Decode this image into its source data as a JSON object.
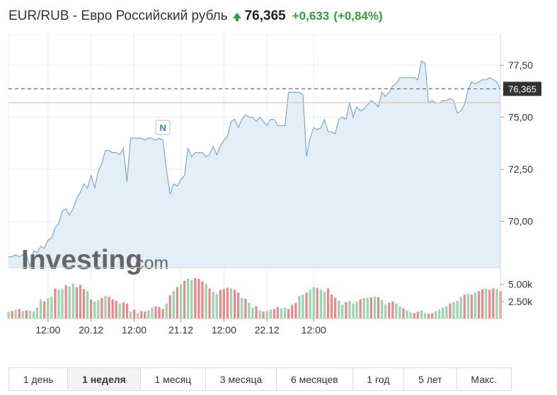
{
  "header": {
    "title": "EUR/RUB - Евро Российский рубль",
    "direction_icon": "up-arrow-icon",
    "price": "76,365",
    "change": "+0,633",
    "change_pct": "(+0,84%)",
    "up_color": "#2aa13a"
  },
  "watermark": {
    "brand": "Investing",
    "suffix": ".com"
  },
  "periods": [
    {
      "label": "1 день",
      "active": false
    },
    {
      "label": "1 неделя",
      "active": true
    },
    {
      "label": "1 месяц",
      "active": false
    },
    {
      "label": "3 месяца",
      "active": false
    },
    {
      "label": "6 месяцев",
      "active": false
    },
    {
      "label": "1 год",
      "active": false
    },
    {
      "label": "5 лет",
      "active": false
    },
    {
      "label": "Макс.",
      "active": false
    }
  ],
  "chart_data": {
    "type": "area",
    "series": [
      {
        "values": [
          68.3,
          68.3,
          68.4,
          68.3,
          68.4,
          68.4,
          67.8,
          68.6,
          68.5,
          68.8,
          68.7,
          69.1,
          69.2,
          69.7,
          69.9,
          70.5,
          70.6,
          70.3,
          70.6,
          71.1,
          71.4,
          71.8,
          71.6,
          72.2,
          71.6,
          72.4,
          72.8,
          73.4,
          73.4,
          73.3,
          73.3,
          73.2,
          73.5,
          71.9,
          74.0,
          74.0,
          74.0,
          74.0,
          73.9,
          74.0,
          74.0,
          73.9,
          74.0,
          73.9,
          72.5,
          71.3,
          71.8,
          71.7,
          72.0,
          72.2,
          73.5,
          73.1,
          73.3,
          73.3,
          73.3,
          73.1,
          73.2,
          73.6,
          73.2,
          73.6,
          73.9,
          74.1,
          74.8,
          74.9,
          74.5,
          74.9,
          75.1,
          75.0,
          75.0,
          74.8,
          75.0,
          74.8,
          74.6,
          74.9,
          74.9,
          74.6,
          74.6,
          74.6,
          76.2,
          76.2,
          76.2,
          76.2,
          76.1,
          73.1,
          74.0,
          74.5,
          74.4,
          74.5,
          74.9,
          74.3,
          74.3,
          74.2,
          74.9,
          75.0,
          74.9,
          75.7,
          75.0,
          75.5,
          75.3,
          75.4,
          75.6,
          75.8,
          75.7,
          75.5,
          76.2,
          76.0,
          76.2,
          76.5,
          76.6,
          76.9,
          76.9,
          76.9,
          76.9,
          76.9,
          76.8,
          77.7,
          77.6,
          75.7,
          75.8,
          75.7,
          75.7,
          75.8,
          75.8,
          75.9,
          75.8,
          75.2,
          75.3,
          75.6,
          76.3,
          76.7,
          76.6,
          76.7,
          76.8,
          76.8,
          76.9,
          76.8,
          76.7,
          76.365
        ]
      }
    ],
    "reference_lines": [
      {
        "value": 76.365,
        "label": "76,365",
        "style": "dashed"
      },
      {
        "value": 75.7,
        "style": "solid"
      }
    ],
    "event_marker": {
      "label": "N",
      "index": 43
    },
    "volume": {
      "values": [
        1.0,
        1.1,
        1.3,
        1.4,
        1.1,
        1.2,
        1.2,
        1.0,
        1.6,
        2.8,
        2.5,
        3.0,
        3.2,
        4.4,
        4.2,
        4.3,
        4.9,
        4.7,
        5.1,
        4.6,
        4.9,
        4.3,
        4.0,
        2.8,
        2.5,
        2.7,
        3.0,
        3.3,
        3.2,
        2.8,
        2.6,
        2.2,
        2.4,
        2.2,
        1.0,
        1.3,
        0.8,
        1.1,
        1.0,
        1.2,
        1.6,
        1.8,
        1.7,
        1.4,
        2.2,
        3.4,
        4.0,
        4.6,
        5.0,
        5.5,
        5.8,
        5.6,
        5.9,
        5.8,
        5.4,
        5.1,
        4.4,
        3.9,
        3.6,
        4.2,
        4.3,
        4.5,
        4.4,
        4.2,
        3.8,
        3.0,
        2.9,
        2.3,
        1.6,
        1.8,
        1.2,
        1.0,
        1.1,
        1.3,
        1.4,
        1.7,
        1.5,
        1.6,
        1.4,
        2.0,
        2.3,
        3.3,
        3.5,
        3.8,
        4.2,
        4.6,
        4.5,
        4.2,
        3.9,
        4.4,
        3.5,
        3.0,
        2.6,
        2.0,
        2.4,
        2.6,
        2.2,
        2.5,
        2.8,
        3.0,
        3.0,
        3.1,
        3.2,
        3.1,
        2.7,
        2.1,
        2.3,
        2.5,
        2.2,
        1.8,
        1.5,
        1.2,
        0.9,
        0.8,
        1.0,
        1.2,
        0.8,
        0.7,
        0.8,
        1.1,
        1.3,
        1.6,
        1.8,
        2.2,
        2.4,
        2.6,
        3.2,
        3.5,
        3.6,
        3.5,
        3.8,
        4.0,
        4.3,
        4.4,
        4.2,
        4.4,
        4.3,
        4.0
      ],
      "directions": [
        "u",
        "d",
        "u",
        "d",
        "u",
        "d",
        "u",
        "u",
        "u",
        "u",
        "d",
        "u",
        "u",
        "d",
        "u",
        "u",
        "d",
        "u",
        "u",
        "d",
        "d",
        "d",
        "u",
        "d",
        "u",
        "u",
        "d",
        "u",
        "d",
        "d",
        "d",
        "u",
        "d",
        "d",
        "u",
        "d",
        "u",
        "d",
        "d",
        "u",
        "u",
        "d",
        "d",
        "d",
        "u",
        "d",
        "u",
        "d",
        "u",
        "d",
        "u",
        "u",
        "d",
        "d",
        "d",
        "u",
        "d",
        "u",
        "u",
        "d",
        "d",
        "d",
        "u",
        "d",
        "d",
        "u",
        "d",
        "u",
        "u",
        "d",
        "u",
        "d",
        "u",
        "u",
        "d",
        "d",
        "u",
        "u",
        "d",
        "d",
        "d",
        "u",
        "u",
        "d",
        "u",
        "u",
        "d",
        "u",
        "u",
        "d",
        "d",
        "d",
        "u",
        "u",
        "d",
        "u",
        "u",
        "u",
        "d",
        "u",
        "u",
        "d",
        "u",
        "d",
        "u",
        "u",
        "d",
        "d",
        "u",
        "u",
        "d",
        "u",
        "u",
        "d",
        "d",
        "u",
        "u",
        "d",
        "d",
        "u",
        "u",
        "u",
        "u",
        "d",
        "u",
        "u",
        "u",
        "d",
        "u",
        "d",
        "u",
        "d",
        "d",
        "u",
        "d",
        "d",
        "u",
        "d"
      ],
      "up_color": "#9cd4ad",
      "down_color": "#e98a8a",
      "yticks": [
        2.5,
        5.0
      ],
      "ytick_labels": [
        "2.50k",
        "5.00k"
      ]
    },
    "xtick_labels": [
      "12:00",
      "20.12",
      "12:00",
      "21.12",
      "12:00",
      "22.12",
      "12:00"
    ],
    "xtick_positions": [
      11,
      23,
      35,
      48,
      60,
      72,
      85
    ],
    "ytick_labels": [
      "70,00",
      "72,50",
      "75,00",
      "77,50"
    ],
    "yticks": [
      70.0,
      72.5,
      75.0,
      77.5
    ],
    "ylim": [
      67.78,
      79.0
    ],
    "line_color": "#7aa9cf",
    "fill_color": "#e4eef6",
    "grid": true
  }
}
